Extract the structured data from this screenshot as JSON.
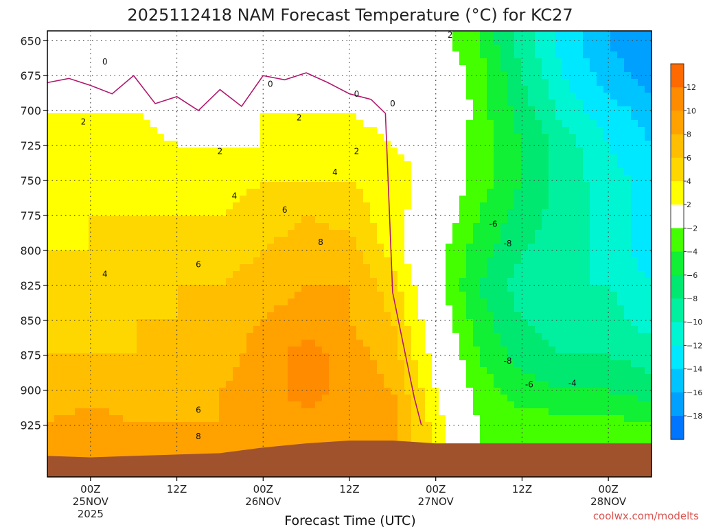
{
  "chart_data": {
    "type": "heatmap",
    "title": "2025112418 NAM Forecast Temperature (°C) for KC27",
    "xlabel": "Forecast Time (UTC)",
    "ylabel": "",
    "y_ticks": [
      650,
      675,
      700,
      725,
      750,
      775,
      800,
      825,
      850,
      875,
      900,
      925
    ],
    "ylim": [
      643,
      962
    ],
    "y_axis_inverted": true,
    "xlim_hours": [
      -6,
      78
    ],
    "x_ticks": [
      {
        "hour": 0,
        "lines": [
          "00Z",
          "25NOV",
          "2025"
        ]
      },
      {
        "hour": 12,
        "lines": [
          "12Z"
        ]
      },
      {
        "hour": 24,
        "lines": [
          "00Z",
          "26NOV"
        ]
      },
      {
        "hour": 36,
        "lines": [
          "12Z"
        ]
      },
      {
        "hour": 48,
        "lines": [
          "00Z",
          "27NOV"
        ]
      },
      {
        "hour": 60,
        "lines": [
          "12Z"
        ]
      },
      {
        "hour": 72,
        "lines": [
          "00Z",
          "28NOV"
        ]
      }
    ],
    "grid": true,
    "colorbar": {
      "placement": "right",
      "ticks": [
        "12",
        "10",
        "8",
        "6",
        "4",
        "2",
        "−2",
        "−4",
        "−6",
        "−8",
        "−10",
        "−12",
        "−14",
        "−16",
        "−18"
      ],
      "colors": [
        "#ff6a00",
        "#ff8c00",
        "#ffa200",
        "#ffbe00",
        "#ffd700",
        "#ffff00",
        "#ffffff",
        "#44ff00",
        "#11f035",
        "#00e870",
        "#00f0a0",
        "#00f5d2",
        "#00e8ff",
        "#00c4ff",
        "#00a0ff",
        "#0075ff"
      ]
    },
    "temperature_grid": {
      "pressure_levels": [
        650,
        675,
        700,
        725,
        750,
        775,
        800,
        825,
        850,
        875,
        900,
        925
      ],
      "hours": [
        -6,
        0,
        6,
        12,
        18,
        24,
        30,
        36,
        42,
        48,
        54,
        60,
        66,
        72,
        78
      ],
      "values": [
        [
          1,
          1,
          1,
          1,
          1,
          1,
          0,
          0,
          1,
          -1,
          -4,
          -9,
          -13,
          -16,
          -18
        ],
        [
          1,
          0,
          0,
          0,
          0,
          0,
          0,
          0,
          0,
          1,
          -3,
          -8,
          -12,
          -15,
          -17
        ],
        [
          2,
          2,
          2,
          1,
          1,
          2,
          2,
          2,
          1,
          2,
          -3,
          -7,
          -11,
          -13,
          -15
        ],
        [
          3,
          3,
          3,
          2,
          2,
          2,
          3,
          3,
          2,
          1,
          -3,
          -6,
          -9,
          -12,
          -14
        ],
        [
          3,
          3,
          4,
          3,
          3,
          4,
          4,
          4,
          3,
          1,
          -3,
          -6,
          -9,
          -11,
          -13
        ],
        [
          3,
          4,
          4,
          4,
          4,
          5,
          6,
          5,
          3,
          0,
          -4,
          -7,
          -9,
          -11,
          -13
        ],
        [
          4,
          4,
          5,
          5,
          5,
          6,
          7,
          7,
          3,
          -1,
          -5,
          -8,
          -9,
          -11,
          -13
        ],
        [
          4,
          5,
          5,
          6,
          6,
          7,
          8,
          8,
          5,
          -1,
          -6,
          -9,
          -10,
          -10,
          -12
        ],
        [
          5,
          5,
          6,
          6,
          7,
          8,
          9,
          8,
          6,
          0,
          -5,
          -8,
          -9,
          -9,
          -11
        ],
        [
          6,
          6,
          6,
          7,
          7,
          9,
          11,
          9,
          7,
          1,
          -4,
          -7,
          -8,
          -8,
          -9
        ],
        [
          7,
          7,
          7,
          7,
          8,
          9,
          11,
          9,
          8,
          2,
          -3,
          -5,
          -6,
          -6,
          -7
        ],
        [
          8,
          9,
          8,
          8,
          8,
          9,
          9,
          9,
          9,
          3,
          -2,
          -3,
          -3,
          -3,
          -4
        ]
      ]
    },
    "zero_isotherm": {
      "points": [
        [
          -6,
          680
        ],
        [
          -3,
          677
        ],
        [
          0,
          682
        ],
        [
          3,
          688
        ],
        [
          6,
          675
        ],
        [
          9,
          695
        ],
        [
          12,
          690
        ],
        [
          15,
          700
        ],
        [
          18,
          685
        ],
        [
          21,
          697
        ],
        [
          24,
          675
        ],
        [
          27,
          678
        ],
        [
          30,
          673
        ],
        [
          33,
          680
        ],
        [
          36,
          688
        ],
        [
          39,
          692
        ],
        [
          41,
          702
        ],
        [
          42,
          830
        ],
        [
          43,
          855
        ],
        [
          44,
          880
        ],
        [
          45,
          905
        ],
        [
          46,
          925
        ]
      ]
    },
    "ground_level": {
      "points": [
        [
          -6,
          947
        ],
        [
          0,
          948
        ],
        [
          6,
          947
        ],
        [
          12,
          946
        ],
        [
          18,
          945
        ],
        [
          24,
          941
        ],
        [
          30,
          938
        ],
        [
          36,
          936
        ],
        [
          42,
          936
        ],
        [
          48,
          938
        ],
        [
          54,
          938
        ],
        [
          60,
          938
        ],
        [
          66,
          938
        ],
        [
          72,
          938
        ],
        [
          78,
          938
        ]
      ]
    },
    "contour_labels": [
      {
        "text": "0",
        "hour": 2,
        "p": 667
      },
      {
        "text": "0",
        "hour": 25,
        "p": 683
      },
      {
        "text": "0",
        "hour": 37,
        "p": 690
      },
      {
        "text": "0",
        "hour": 42,
        "p": 697
      },
      {
        "text": "2",
        "hour": 50,
        "p": 648
      },
      {
        "text": "2",
        "hour": -1,
        "p": 710
      },
      {
        "text": "2",
        "hour": 29,
        "p": 707
      },
      {
        "text": "2",
        "hour": 18,
        "p": 731
      },
      {
        "text": "2",
        "hour": 37,
        "p": 731
      },
      {
        "text": "4",
        "hour": 34,
        "p": 746
      },
      {
        "text": "4",
        "hour": 20,
        "p": 763
      },
      {
        "text": "4",
        "hour": 2,
        "p": 819
      },
      {
        "text": "6",
        "hour": 27,
        "p": 773
      },
      {
        "text": "6",
        "hour": 15,
        "p": 812
      },
      {
        "text": "6",
        "hour": 15,
        "p": 916
      },
      {
        "text": "8",
        "hour": 32,
        "p": 796
      },
      {
        "text": "8",
        "hour": 15,
        "p": 935
      },
      {
        "text": "-6",
        "hour": 56,
        "p": 783
      },
      {
        "text": "-8",
        "hour": 58,
        "p": 797
      },
      {
        "text": "-8",
        "hour": 58,
        "p": 881
      },
      {
        "text": "-6",
        "hour": 61,
        "p": 898
      },
      {
        "text": "-4",
        "hour": 67,
        "p": 897
      }
    ],
    "credit": "coolwx.com/modelts"
  }
}
